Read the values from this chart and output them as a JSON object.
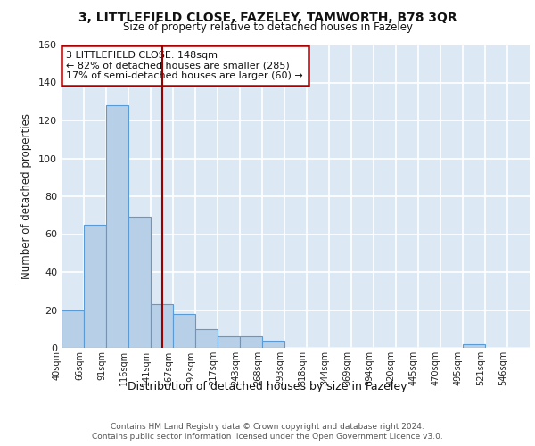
{
  "title1": "3, LITTLEFIELD CLOSE, FAZELEY, TAMWORTH, B78 3QR",
  "title2": "Size of property relative to detached houses in Fazeley",
  "xlabel": "Distribution of detached houses by size in Fazeley",
  "ylabel": "Number of detached properties",
  "bar_labels": [
    "40sqm",
    "66sqm",
    "91sqm",
    "116sqm",
    "141sqm",
    "167sqm",
    "192sqm",
    "217sqm",
    "243sqm",
    "268sqm",
    "293sqm",
    "318sqm",
    "344sqm",
    "369sqm",
    "394sqm",
    "420sqm",
    "445sqm",
    "470sqm",
    "495sqm",
    "521sqm",
    "546sqm"
  ],
  "bar_values": [
    20,
    65,
    128,
    69,
    23,
    18,
    10,
    6,
    6,
    4,
    0,
    0,
    0,
    0,
    0,
    0,
    0,
    0,
    2,
    0,
    0
  ],
  "bar_color": "#b8cfe8",
  "bar_edgecolor": "#5b9bd5",
  "bg_color": "#dde8f5",
  "grid_color": "#ffffff",
  "red_line_x": 4.5,
  "annotation_text": "3 LITTLEFIELD CLOSE: 148sqm\n← 82% of detached houses are smaller (285)\n17% of semi-detached houses are larger (60) →",
  "annotation_box_color": "#ffffff",
  "annotation_box_edgecolor": "#aa0000",
  "footer1": "Contains HM Land Registry data © Crown copyright and database right 2024.",
  "footer2": "Contains public sector information licensed under the Open Government Licence v3.0.",
  "ylim": [
    0,
    160
  ],
  "yticks": [
    0,
    20,
    40,
    60,
    80,
    100,
    120,
    140,
    160
  ]
}
